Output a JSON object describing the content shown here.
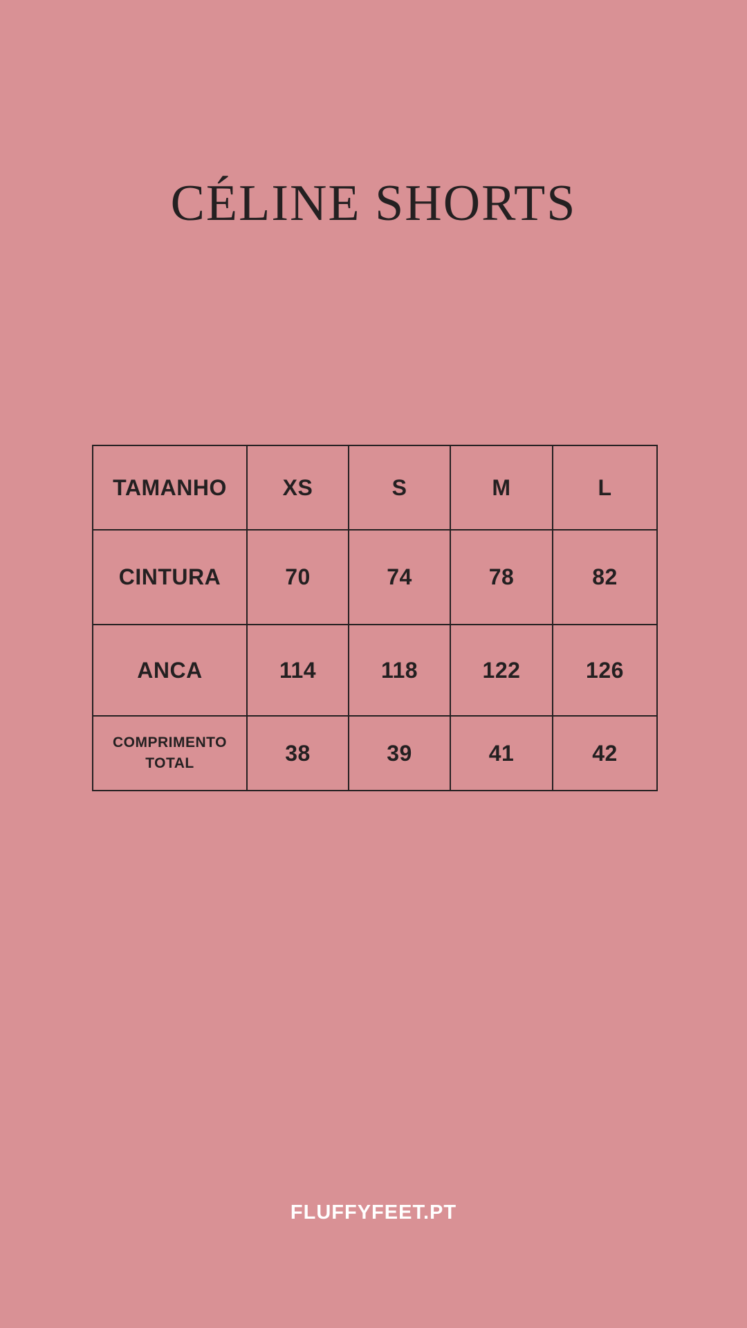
{
  "page": {
    "background_color": "#d99195",
    "text_color": "#242021",
    "footer_text_color": "#ffffff"
  },
  "header": {
    "title": "CÉLINE SHORTS"
  },
  "size_table": {
    "rows": [
      {
        "label": "TAMANHO",
        "values": [
          "XS",
          "S",
          "M",
          "L"
        ]
      },
      {
        "label": "CINTURA",
        "values": [
          "70",
          "74",
          "78",
          "82"
        ]
      },
      {
        "label": "ANCA",
        "values": [
          "114",
          "118",
          "122",
          "126"
        ]
      },
      {
        "label": "COMPRIMENTO TOTAL",
        "values": [
          "38",
          "39",
          "41",
          "42"
        ]
      }
    ]
  },
  "footer": {
    "website": "FLUFFYFEET.PT"
  },
  "chart_data": {
    "type": "table",
    "title": "CÉLINE SHORTS",
    "columns": [
      "TAMANHO",
      "XS",
      "S",
      "M",
      "L"
    ],
    "rows": [
      [
        "CINTURA",
        70,
        74,
        78,
        82
      ],
      [
        "ANCA",
        114,
        118,
        122,
        126
      ],
      [
        "COMPRIMENTO TOTAL",
        38,
        39,
        41,
        42
      ]
    ]
  }
}
